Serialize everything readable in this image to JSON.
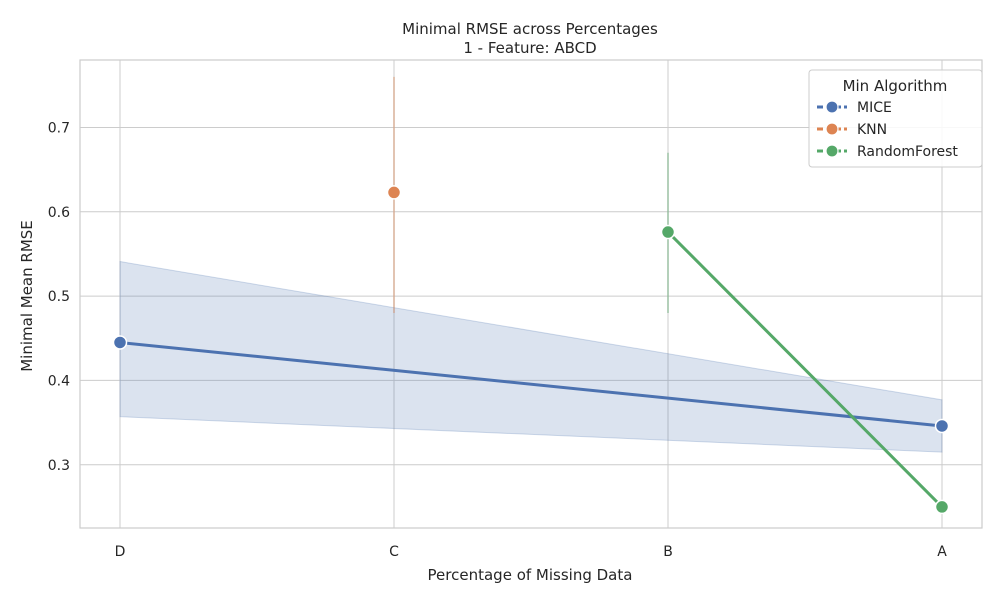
{
  "chart_data": {
    "type": "line",
    "title": "Minimal RMSE across Percentages",
    "subtitle": "1 - Feature: ABCD",
    "xlabel": "Percentage of Missing Data",
    "ylabel": "Minimal Mean RMSE",
    "categories": [
      "D",
      "C",
      "B",
      "A"
    ],
    "ylim": [
      0.225,
      0.78
    ],
    "yticks": [
      0.3,
      0.4,
      0.5,
      0.6,
      0.7
    ],
    "grid": true,
    "legend": {
      "title": "Min Algorithm",
      "placement": "top-right"
    },
    "series": [
      {
        "name": "MICE",
        "color": "#4c72b0",
        "x": [
          "D",
          "A"
        ],
        "values": [
          0.445,
          0.346
        ],
        "band": {
          "lower": [
            0.357,
            0.315
          ],
          "upper": [
            0.541,
            0.377
          ]
        }
      },
      {
        "name": "KNN",
        "color": "#dd8452",
        "x": [
          "C"
        ],
        "values": [
          0.623
        ],
        "range": {
          "lower": 0.48,
          "upper": 0.76
        }
      },
      {
        "name": "RandomForest",
        "color": "#55a868",
        "x": [
          "B",
          "A"
        ],
        "values": [
          0.576,
          0.25
        ],
        "range_first": {
          "lower": 0.48,
          "upper": 0.67
        }
      }
    ]
  }
}
